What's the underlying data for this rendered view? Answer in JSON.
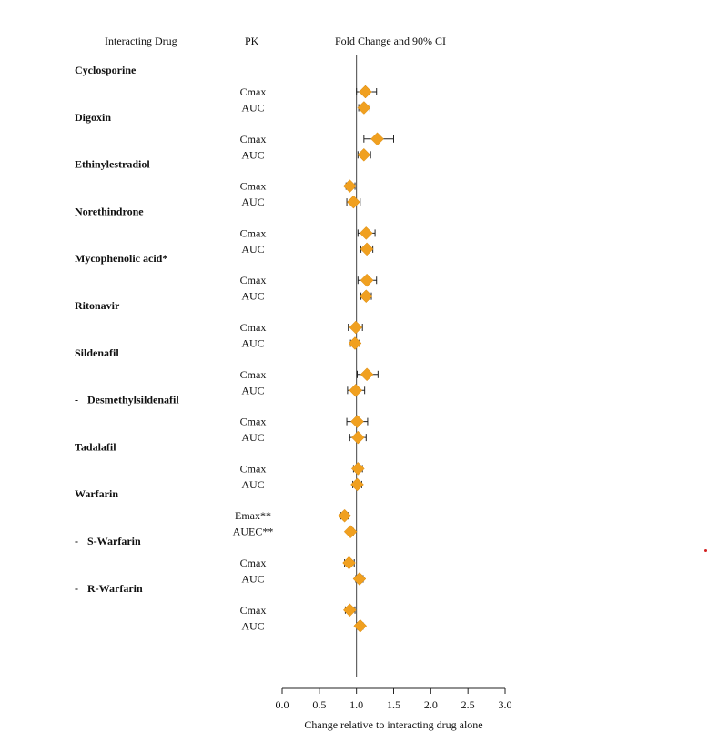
{
  "headers": {
    "drug": "Interacting Drug",
    "pk": "PK",
    "fold": "Fold Change and 90% CI"
  },
  "chart_data": {
    "type": "forest",
    "title": "Fold Change and 90% CI",
    "xlabel": "Change relative to interacting drug alone",
    "xlim": [
      0.0,
      3.0
    ],
    "xticks": [
      "0.0",
      "0.5",
      "1.0",
      "1.5",
      "2.0",
      "2.5",
      "3.0"
    ],
    "reference_line": 1.0,
    "marker_color": "#f0a020",
    "marker": "diamond",
    "groups": [
      {
        "label": "Cyclosporine",
        "prefix": "",
        "rows": [
          {
            "pk": "Cmax",
            "est": 1.12,
            "lo": 1.0,
            "hi": 1.27
          },
          {
            "pk": "AUC",
            "est": 1.1,
            "lo": 1.03,
            "hi": 1.18
          }
        ]
      },
      {
        "label": "Digoxin",
        "prefix": "",
        "rows": [
          {
            "pk": "Cmax",
            "est": 1.28,
            "lo": 1.1,
            "hi": 1.5
          },
          {
            "pk": "AUC",
            "est": 1.1,
            "lo": 1.02,
            "hi": 1.19
          }
        ]
      },
      {
        "label": "Ethinylestradiol",
        "prefix": "",
        "rows": [
          {
            "pk": "Cmax",
            "est": 0.91,
            "lo": 0.86,
            "hi": 0.98
          },
          {
            "pk": "AUC",
            "est": 0.96,
            "lo": 0.87,
            "hi": 1.05
          }
        ]
      },
      {
        "label": "Norethindrone",
        "prefix": "",
        "rows": [
          {
            "pk": "Cmax",
            "est": 1.13,
            "lo": 1.02,
            "hi": 1.25
          },
          {
            "pk": "AUC",
            "est": 1.14,
            "lo": 1.06,
            "hi": 1.22
          }
        ]
      },
      {
        "label": "Mycophenolic acid*",
        "prefix": "",
        "rows": [
          {
            "pk": "Cmax",
            "est": 1.14,
            "lo": 1.02,
            "hi": 1.27
          },
          {
            "pk": "AUC",
            "est": 1.13,
            "lo": 1.06,
            "hi": 1.2
          }
        ]
      },
      {
        "label": "Ritonavir",
        "prefix": "",
        "rows": [
          {
            "pk": "Cmax",
            "est": 0.99,
            "lo": 0.89,
            "hi": 1.08
          },
          {
            "pk": "AUC",
            "est": 0.98,
            "lo": 0.92,
            "hi": 1.04
          }
        ]
      },
      {
        "label": "Sildenafil",
        "prefix": "",
        "rows": [
          {
            "pk": "Cmax",
            "est": 1.14,
            "lo": 1.01,
            "hi": 1.29
          },
          {
            "pk": "AUC",
            "est": 0.99,
            "lo": 0.88,
            "hi": 1.11
          }
        ]
      },
      {
        "label": "Desmethylsildenafil",
        "prefix": "-",
        "rows": [
          {
            "pk": "Cmax",
            "est": 1.01,
            "lo": 0.87,
            "hi": 1.15
          },
          {
            "pk": "AUC",
            "est": 1.02,
            "lo": 0.91,
            "hi": 1.13
          }
        ]
      },
      {
        "label": "Tadalafil",
        "prefix": "",
        "rows": [
          {
            "pk": "Cmax",
            "est": 1.02,
            "lo": 0.96,
            "hi": 1.08
          },
          {
            "pk": "AUC",
            "est": 1.01,
            "lo": 0.95,
            "hi": 1.07
          }
        ]
      },
      {
        "label": "Warfarin",
        "prefix": "",
        "rows": [
          {
            "pk": "Emax**",
            "est": 0.84,
            "lo": 0.79,
            "hi": 0.89
          },
          {
            "pk": "AUEC**",
            "est": 0.92,
            "lo": 0.89,
            "hi": 0.96
          }
        ]
      },
      {
        "label": "S-Warfarin",
        "prefix": "-",
        "rows": [
          {
            "pk": "Cmax",
            "est": 0.9,
            "lo": 0.84,
            "hi": 0.97
          },
          {
            "pk": "AUC",
            "est": 1.04,
            "lo": 0.99,
            "hi": 1.09
          }
        ]
      },
      {
        "label": "R-Warfarin",
        "prefix": "-",
        "rows": [
          {
            "pk": "Cmax",
            "est": 0.91,
            "lo": 0.85,
            "hi": 0.98
          },
          {
            "pk": "AUC",
            "est": 1.05,
            "lo": 1.01,
            "hi": 1.09
          }
        ]
      }
    ]
  }
}
